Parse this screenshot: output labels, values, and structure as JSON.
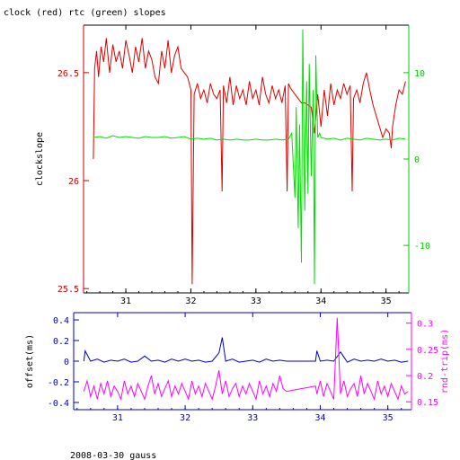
{
  "colors": {
    "frame": "#000000",
    "top_left_axis": "#cc0000",
    "top_right_axis": "#00cc00",
    "bottom_axis": "#0000cc",
    "bottom_right_axis": "#ff00ff",
    "clock_series": "#dd0000",
    "rtc_series": "#00dd00",
    "offset_series": "#0000cc",
    "rtt_series": "#ff00ff"
  },
  "header": {
    "title": "clock (red) rtc (green) slopes"
  },
  "footer": {
    "caption": "2008-03-30 gauss"
  },
  "chart_data": [
    {
      "type": "line",
      "ylabel": "clockslope",
      "xlim": [
        30.35,
        35.35
      ],
      "ylim": [
        25.48,
        26.72
      ],
      "y2lim": [
        -15.5,
        15.5
      ],
      "x_ticks": [
        31,
        32,
        33,
        34,
        35
      ],
      "y_ticks": [
        25.5,
        26,
        26.5
      ],
      "y_tick_labels": [
        "25.5",
        "26",
        "26.5"
      ],
      "y2_ticks": [
        -10,
        0,
        10
      ],
      "y2_tick_labels": [
        "-10",
        "0",
        "10"
      ],
      "series": [
        {
          "axis": "left",
          "x": [
            30.5,
            30.52,
            30.55,
            30.58,
            30.62,
            30.66,
            30.7,
            30.75,
            30.8,
            30.85,
            30.9,
            30.95,
            31.0,
            31.05,
            31.1,
            31.15,
            31.2,
            31.25,
            31.3,
            31.35,
            31.4,
            31.45,
            31.5,
            31.55,
            31.6,
            31.65,
            31.7,
            31.75,
            31.8,
            31.85,
            31.9,
            31.95,
            32.0,
            32.02,
            32.05,
            32.1,
            32.15,
            32.2,
            32.25,
            32.3,
            32.35,
            32.4,
            32.45,
            32.48,
            32.5,
            32.55,
            32.6,
            32.65,
            32.7,
            32.75,
            32.8,
            32.85,
            32.9,
            32.95,
            33.0,
            33.05,
            33.1,
            33.15,
            33.2,
            33.25,
            33.3,
            33.35,
            33.4,
            33.45,
            33.48,
            33.5,
            33.53,
            33.55,
            33.6,
            33.65,
            33.7,
            33.75,
            33.8,
            33.85,
            33.9,
            33.95,
            34.0,
            34.05,
            34.1,
            34.15,
            34.2,
            34.25,
            34.3,
            34.35,
            34.4,
            34.45,
            34.48,
            34.5,
            34.55,
            34.6,
            34.65,
            34.7,
            34.75,
            34.8,
            34.85,
            34.9,
            34.95,
            35.0,
            35.05,
            35.08,
            35.1,
            35.15,
            35.2,
            35.25,
            35.3
          ],
          "y": [
            26.1,
            26.52,
            26.6,
            26.48,
            26.62,
            26.55,
            26.66,
            26.5,
            26.63,
            26.55,
            26.6,
            26.52,
            26.65,
            26.58,
            26.5,
            26.62,
            26.55,
            26.66,
            26.52,
            26.6,
            26.56,
            26.48,
            26.45,
            26.6,
            26.52,
            26.65,
            26.5,
            26.58,
            26.62,
            26.52,
            26.5,
            26.48,
            26.42,
            25.52,
            26.4,
            26.45,
            26.38,
            26.42,
            26.36,
            26.45,
            26.4,
            26.38,
            26.42,
            25.95,
            26.44,
            26.36,
            26.48,
            26.35,
            26.44,
            26.38,
            26.42,
            26.35,
            26.46,
            26.38,
            26.42,
            26.35,
            26.48,
            26.4,
            26.36,
            26.44,
            26.38,
            26.42,
            26.36,
            26.44,
            25.95,
            26.45,
            26.43,
            26.42,
            26.4,
            26.38,
            26.36,
            26.36,
            26.35,
            26.34,
            26.22,
            26.4,
            26.25,
            26.42,
            26.3,
            26.45,
            26.35,
            26.42,
            26.38,
            26.45,
            26.4,
            26.44,
            25.95,
            26.38,
            26.42,
            26.36,
            26.45,
            26.5,
            26.42,
            26.35,
            26.3,
            26.25,
            26.2,
            26.24,
            26.22,
            26.15,
            26.25,
            26.35,
            26.42,
            26.4,
            26.46
          ]
        },
        {
          "axis": "right",
          "x": [
            30.5,
            30.6,
            30.7,
            30.8,
            30.9,
            31.0,
            31.1,
            31.2,
            31.3,
            31.4,
            31.5,
            31.6,
            31.7,
            31.8,
            31.9,
            32.0,
            32.1,
            32.2,
            32.3,
            32.4,
            32.5,
            32.6,
            32.7,
            32.8,
            32.9,
            33.0,
            33.1,
            33.2,
            33.3,
            33.4,
            33.5,
            33.55,
            33.6,
            33.62,
            33.65,
            33.67,
            33.7,
            33.72,
            33.75,
            33.78,
            33.8,
            33.82,
            33.85,
            33.88,
            33.9,
            33.92,
            33.95,
            33.98,
            34.0,
            34.1,
            34.2,
            34.3,
            34.4,
            34.5,
            34.6,
            34.7,
            34.8,
            34.9,
            35.0,
            35.1,
            35.2,
            35.3
          ],
          "y": [
            2.5,
            2.6,
            2.4,
            2.7,
            2.5,
            2.6,
            2.5,
            2.4,
            2.6,
            2.5,
            2.5,
            2.6,
            2.4,
            2.5,
            2.6,
            2.3,
            2.4,
            2.3,
            2.4,
            2.2,
            2.3,
            2.2,
            2.3,
            2.2,
            2.2,
            2.3,
            2.2,
            2.2,
            2.3,
            2.2,
            2.3,
            3.0,
            -4.5,
            6.0,
            -8.0,
            4.0,
            -12.0,
            15.0,
            -6.0,
            9.0,
            -4.0,
            11.0,
            -2.0,
            8.0,
            -14.5,
            12.0,
            2.5,
            3.0,
            2.5,
            2.3,
            2.4,
            2.2,
            2.4,
            2.3,
            2.2,
            2.4,
            2.3,
            2.2,
            2.3,
            2.2,
            2.4,
            2.3
          ]
        }
      ]
    },
    {
      "type": "line",
      "ylabel": "offset(ms)",
      "y2label": "rnd-trip(ms)",
      "xlim": [
        30.35,
        35.35
      ],
      "ylim": [
        -0.47,
        0.47
      ],
      "y2lim": [
        0.135,
        0.32
      ],
      "x_ticks": [
        31,
        32,
        33,
        34,
        35
      ],
      "y_ticks": [
        -0.4,
        -0.2,
        0,
        0.2,
        0.4
      ],
      "y_tick_labels": [
        "-0.4",
        "-0.2",
        "0",
        "0.2",
        "0.4"
      ],
      "y2_ticks": [
        0.15,
        0.2,
        0.25,
        0.3
      ],
      "y2_tick_labels": [
        "0.15",
        "0.2",
        "0.25",
        "0.3"
      ],
      "series": [
        {
          "axis": "left",
          "x": [
            30.5,
            30.52,
            30.6,
            30.7,
            30.8,
            30.9,
            31.0,
            31.1,
            31.2,
            31.3,
            31.4,
            31.5,
            31.6,
            31.7,
            31.8,
            31.9,
            32.0,
            32.1,
            32.2,
            32.3,
            32.4,
            32.5,
            32.55,
            32.6,
            32.7,
            32.8,
            32.9,
            33.0,
            33.1,
            33.2,
            33.3,
            33.4,
            33.5,
            33.93,
            33.95,
            34.0,
            34.1,
            34.2,
            34.3,
            34.4,
            34.5,
            34.6,
            34.7,
            34.8,
            34.9,
            35.0,
            35.1,
            35.2,
            35.3
          ],
          "y": [
            0.0,
            0.1,
            0.0,
            0.02,
            -0.01,
            0.01,
            0.0,
            0.02,
            -0.01,
            0.0,
            0.05,
            0.0,
            0.01,
            -0.01,
            0.02,
            0.0,
            0.02,
            0.0,
            0.01,
            -0.01,
            0.0,
            0.08,
            0.23,
            0.0,
            0.02,
            -0.01,
            0.0,
            0.01,
            -0.01,
            0.02,
            0.0,
            0.01,
            0.0,
            0.0,
            0.1,
            0.0,
            0.01,
            0.0,
            0.09,
            -0.01,
            0.02,
            0.0,
            0.01,
            0.0,
            0.02,
            0.0,
            0.01,
            -0.01,
            0.0
          ]
        },
        {
          "axis": "right",
          "x": [
            30.5,
            30.55,
            30.6,
            30.65,
            30.7,
            30.75,
            30.8,
            30.85,
            30.9,
            30.95,
            31.0,
            31.05,
            31.1,
            31.15,
            31.2,
            31.25,
            31.3,
            31.35,
            31.4,
            31.45,
            31.5,
            31.55,
            31.6,
            31.65,
            31.7,
            31.75,
            31.8,
            31.85,
            31.9,
            31.95,
            32.0,
            32.05,
            32.1,
            32.15,
            32.2,
            32.25,
            32.3,
            32.35,
            32.4,
            32.45,
            32.5,
            32.55,
            32.6,
            32.65,
            32.7,
            32.75,
            32.8,
            32.85,
            32.9,
            32.95,
            33.0,
            33.05,
            33.1,
            33.15,
            33.2,
            33.25,
            33.3,
            33.35,
            33.4,
            33.45,
            33.5,
            33.93,
            33.95,
            34.0,
            34.05,
            34.1,
            34.15,
            34.2,
            34.25,
            34.3,
            34.35,
            34.4,
            34.45,
            34.5,
            34.55,
            34.6,
            34.65,
            34.7,
            34.75,
            34.8,
            34.85,
            34.9,
            34.95,
            35.0,
            35.05,
            35.1,
            35.15,
            35.2,
            35.25,
            35.3
          ],
          "y": [
            0.17,
            0.19,
            0.16,
            0.18,
            0.155,
            0.185,
            0.165,
            0.19,
            0.16,
            0.18,
            0.17,
            0.155,
            0.19,
            0.165,
            0.18,
            0.16,
            0.185,
            0.17,
            0.155,
            0.18,
            0.2,
            0.165,
            0.185,
            0.16,
            0.175,
            0.19,
            0.16,
            0.18,
            0.165,
            0.185,
            0.17,
            0.155,
            0.19,
            0.165,
            0.18,
            0.16,
            0.185,
            0.17,
            0.155,
            0.18,
            0.21,
            0.165,
            0.19,
            0.16,
            0.175,
            0.185,
            0.16,
            0.18,
            0.165,
            0.185,
            0.17,
            0.155,
            0.19,
            0.165,
            0.18,
            0.16,
            0.185,
            0.17,
            0.2,
            0.175,
            0.17,
            0.18,
            0.165,
            0.19,
            0.16,
            0.185,
            0.17,
            0.155,
            0.31,
            0.165,
            0.19,
            0.16,
            0.175,
            0.185,
            0.16,
            0.2,
            0.165,
            0.185,
            0.17,
            0.155,
            0.19,
            0.165,
            0.18,
            0.16,
            0.185,
            0.17,
            0.155,
            0.18,
            0.165,
            0.17
          ]
        }
      ]
    }
  ]
}
